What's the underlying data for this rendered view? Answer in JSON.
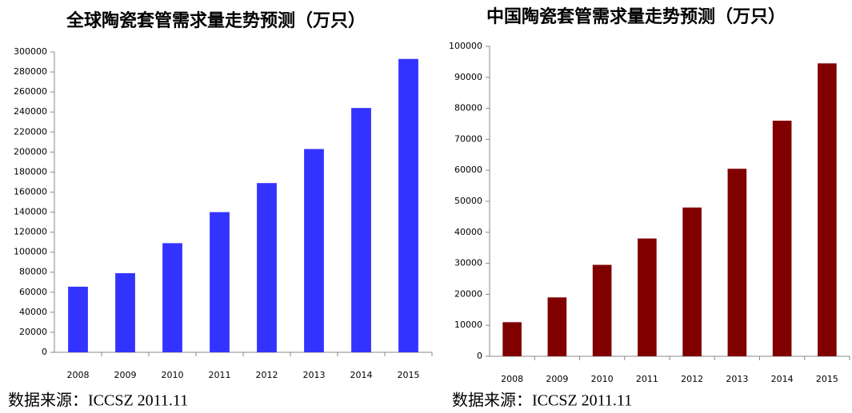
{
  "chart_data": [
    {
      "type": "bar",
      "title": "全球陶瓷套管需求量走势预测（万只）",
      "categories": [
        "2008",
        "2009",
        "2010",
        "2011",
        "2012",
        "2013",
        "2014",
        "2015"
      ],
      "values": [
        65500,
        79000,
        109000,
        140000,
        169000,
        203000,
        244000,
        293000
      ],
      "color": "#3333ff",
      "ylim": [
        0,
        300000
      ],
      "yticks": [
        0,
        20000,
        40000,
        60000,
        80000,
        100000,
        120000,
        140000,
        160000,
        180000,
        200000,
        220000,
        240000,
        260000,
        280000,
        300000
      ],
      "grid": false,
      "source": "数据来源：ICCSZ 2011.11"
    },
    {
      "type": "bar",
      "title": "中国陶瓷套管需求量走势预测（万只）",
      "categories": [
        "2008",
        "2009",
        "2010",
        "2011",
        "2012",
        "2013",
        "2014",
        "2015"
      ],
      "values": [
        11000,
        19000,
        29500,
        38000,
        48000,
        60500,
        76000,
        94500
      ],
      "color": "#800000",
      "ylim": [
        0,
        100000
      ],
      "yticks": [
        0,
        10000,
        20000,
        30000,
        40000,
        50000,
        60000,
        70000,
        80000,
        90000,
        100000
      ],
      "grid": false,
      "source": "数据来源：ICCSZ 2011.11"
    }
  ]
}
